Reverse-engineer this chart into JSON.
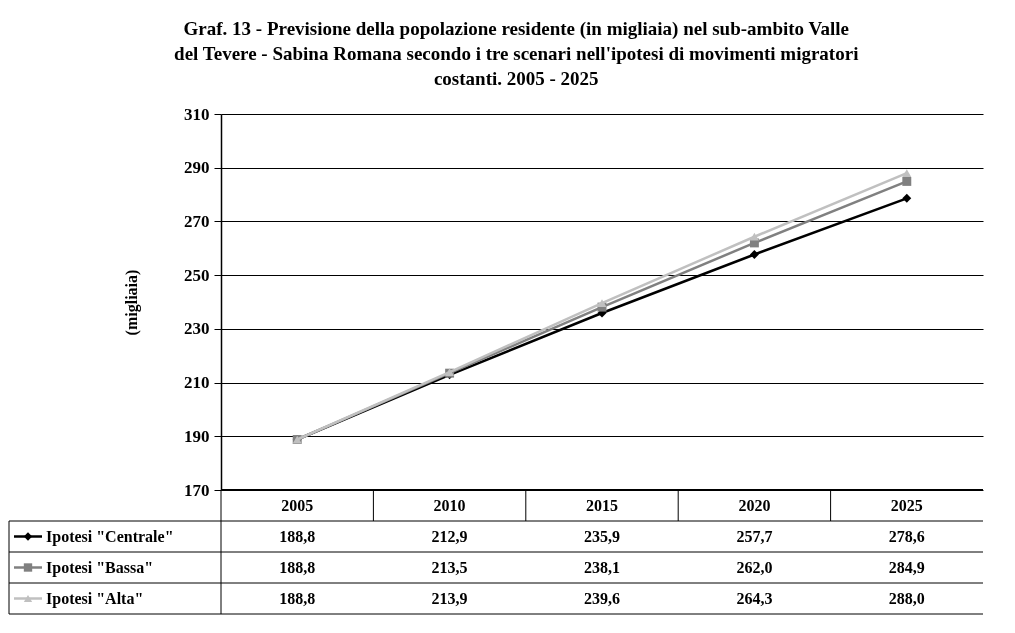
{
  "chart_data": {
    "type": "line",
    "title": "Graf. 13 - Previsione della popolazione residente (in migliaia) nel sub-ambito Valle del Tevere - Sabina Romana secondo i tre scenari nell'ipotesi di movimenti migratori costanti. 2005 - 2025",
    "ylabel": "(migliaia)",
    "categories": [
      "2005",
      "2010",
      "2015",
      "2020",
      "2025"
    ],
    "series": [
      {
        "name": "Ipotesi \"Centrale\"",
        "color": "#000000",
        "marker": "diamond",
        "values": [
          188.8,
          212.9,
          235.9,
          257.7,
          278.6
        ],
        "value_labels": [
          "188,8",
          "212,9",
          "235,9",
          "257,7",
          "278,6"
        ]
      },
      {
        "name": "Ipotesi \"Bassa\"",
        "color": "#808080",
        "marker": "square",
        "values": [
          188.8,
          213.5,
          238.1,
          262.0,
          284.9
        ],
        "value_labels": [
          "188,8",
          "213,5",
          "238,1",
          "262,0",
          "284,9"
        ]
      },
      {
        "name": "Ipotesi \"Alta\"",
        "color": "#c0c0c0",
        "marker": "triangle",
        "values": [
          188.8,
          213.9,
          239.6,
          264.3,
          288.0
        ],
        "value_labels": [
          "188,8",
          "213,9",
          "239,6",
          "264,3",
          "288,0"
        ]
      }
    ],
    "ylim": [
      170,
      310
    ],
    "yticks": [
      170,
      190,
      210,
      230,
      250,
      270,
      290,
      310
    ],
    "grid": "y",
    "legend": "bottom",
    "line_style": "solid"
  }
}
